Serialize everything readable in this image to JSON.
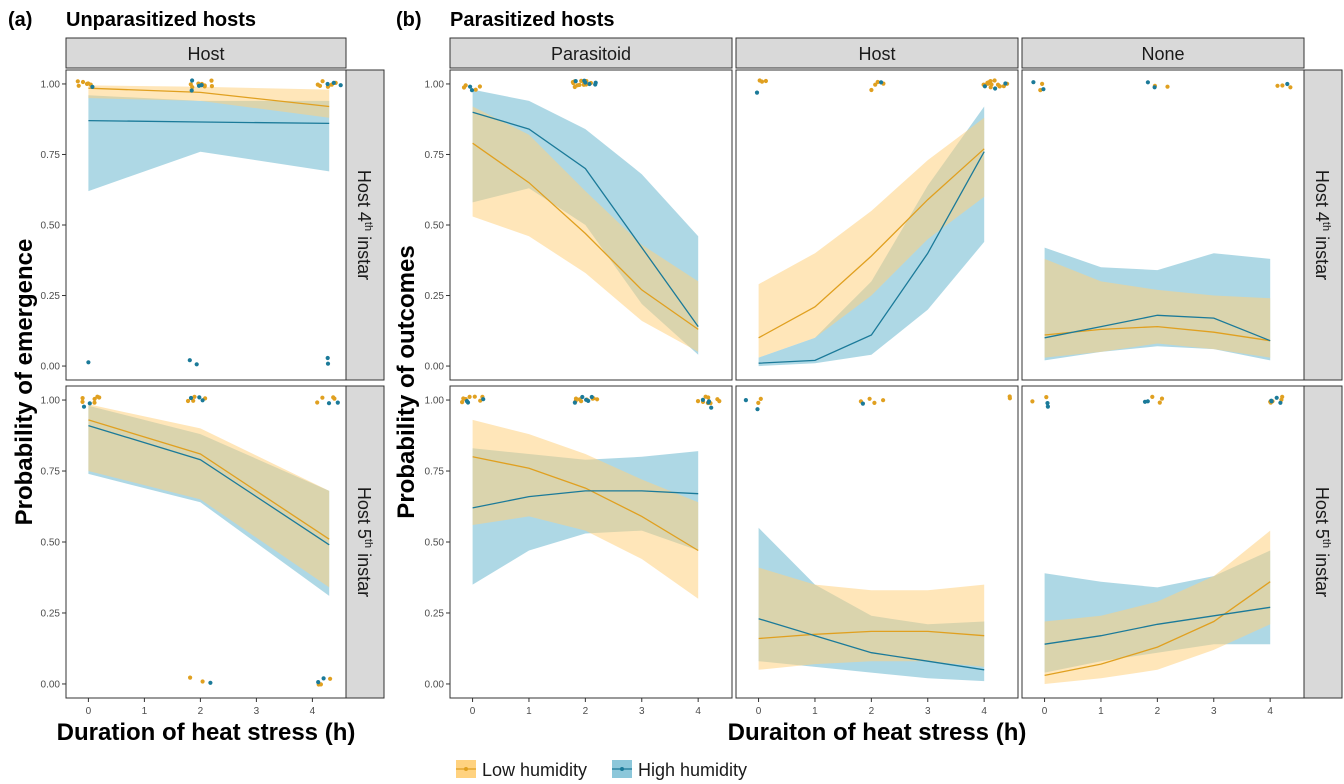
{
  "figure": {
    "panel_a_tag": "(a)",
    "panel_a_title": "Unparasitized hosts",
    "panel_b_tag": "(b)",
    "panel_b_title": "Parasitized hosts",
    "ylabel_a": "Probability of emergence",
    "ylabel_b": "Probability of outcomes",
    "xlabel_a": "Duration of heat stress (h)",
    "xlabel_b": "Duraiton of heat stress (h)",
    "row_strip_1_main": "Host 4",
    "row_strip_1_sup": "th",
    "row_strip_1_tail": " instar",
    "row_strip_2_main": "Host 5",
    "row_strip_2_sup": "th",
    "row_strip_2_tail": " instar",
    "yticks": [
      "0.00",
      "0.25",
      "0.50",
      "0.75",
      "1.00"
    ],
    "xticks": [
      "0",
      "1",
      "2",
      "3",
      "4"
    ]
  },
  "legend": [
    {
      "label": "Low humidity",
      "color": "#F5A623"
    },
    {
      "label": "High humidity",
      "color": "#1B7A99"
    }
  ],
  "colors": {
    "low_line": "#E0A020",
    "low_band": "#FFD27F",
    "high_line": "#1B7A99",
    "high_band": "#6BB8CF",
    "overlap_line": "#3B8A6E"
  },
  "chart_data": [
    {
      "type": "line",
      "panel": "a",
      "column": "Host",
      "row": "Host 4th instar",
      "x": [
        0,
        2,
        4.3
      ],
      "ylim": [
        0,
        1
      ],
      "xlim": [
        -0.4,
        4.6
      ],
      "series": [
        {
          "name": "Low humidity",
          "values": [
            0.985,
            0.97,
            0.92
          ],
          "lower": [
            0.95,
            0.94,
            0.88
          ],
          "upper": [
            0.995,
            0.99,
            0.98
          ]
        },
        {
          "name": "High humidity",
          "values": [
            0.87,
            0.865,
            0.86
          ],
          "lower": [
            0.62,
            0.76,
            0.69
          ],
          "upper": [
            0.96,
            0.94,
            0.94
          ]
        }
      ],
      "points": {
        "x": [
          0,
          2,
          4.3
        ],
        "low_y": [
          [
            1,
            1,
            1,
            1,
            1,
            1
          ],
          [
            1,
            1,
            1,
            1,
            1,
            1,
            1,
            1
          ],
          [
            1,
            1,
            1,
            1,
            1,
            1,
            1
          ]
        ],
        "high_y": [
          [
            1,
            0.02
          ],
          [
            1,
            1,
            1,
            0.97,
            0.01,
            0.01
          ],
          [
            1,
            1,
            1,
            0.02,
            0.01
          ]
        ]
      }
    },
    {
      "type": "line",
      "panel": "a",
      "column": "Host",
      "row": "Host 5th instar",
      "x": [
        0,
        2,
        4.3
      ],
      "ylim": [
        0,
        1
      ],
      "xlim": [
        -0.4,
        4.6
      ],
      "series": [
        {
          "name": "Low humidity",
          "values": [
            0.93,
            0.81,
            0.51
          ],
          "lower": [
            0.75,
            0.65,
            0.34
          ],
          "upper": [
            0.985,
            0.9,
            0.68
          ]
        },
        {
          "name": "High humidity",
          "values": [
            0.91,
            0.79,
            0.49
          ],
          "lower": [
            0.74,
            0.64,
            0.31
          ],
          "upper": [
            0.98,
            0.88,
            0.68
          ]
        }
      ],
      "points": {
        "x": [
          0,
          2,
          4.3
        ],
        "low_y": [
          [
            1,
            1,
            1,
            1,
            1,
            1
          ],
          [
            1,
            1,
            1,
            1,
            0.01,
            0.01
          ],
          [
            1,
            1,
            1,
            1,
            0.01,
            0.01,
            0.01
          ]
        ],
        "high_y": [
          [
            1,
            0.98
          ],
          [
            1,
            1,
            1,
            0.01
          ],
          [
            1,
            1,
            0.02,
            0.01
          ]
        ]
      }
    },
    {
      "type": "line",
      "panel": "b",
      "column": "Parasitoid",
      "row": "Host 4th instar",
      "x": [
        0,
        1,
        2,
        3,
        4
      ],
      "ylim": [
        0,
        1
      ],
      "xlim": [
        -0.4,
        4.6
      ],
      "series": [
        {
          "name": "Low humidity",
          "values": [
            0.79,
            0.65,
            0.47,
            0.27,
            0.13
          ],
          "lower": [
            0.53,
            0.46,
            0.33,
            0.16,
            0.05
          ],
          "upper": [
            0.92,
            0.82,
            0.62,
            0.43,
            0.3
          ]
        },
        {
          "name": "High humidity",
          "values": [
            0.9,
            0.84,
            0.7,
            0.42,
            0.14
          ],
          "lower": [
            0.58,
            0.63,
            0.5,
            0.22,
            0.04
          ],
          "upper": [
            0.98,
            0.94,
            0.84,
            0.68,
            0.46
          ]
        }
      ],
      "points": {
        "x": [
          0,
          2
        ],
        "low_y": [
          [
            1,
            1,
            1,
            0.99
          ],
          [
            1,
            1,
            1,
            1,
            1,
            1,
            1,
            1,
            1,
            1,
            1,
            1
          ]
        ],
        "high_y": [
          [
            1,
            0.98
          ],
          [
            1,
            1,
            1,
            1,
            1,
            1
          ]
        ]
      }
    },
    {
      "type": "line",
      "panel": "b",
      "column": "Host",
      "row": "Host 4th instar",
      "x": [
        0,
        1,
        2,
        3,
        4
      ],
      "ylim": [
        0,
        1
      ],
      "xlim": [
        -0.4,
        4.6
      ],
      "series": [
        {
          "name": "Low humidity",
          "values": [
            0.1,
            0.21,
            0.39,
            0.59,
            0.77
          ],
          "lower": [
            0.03,
            0.1,
            0.25,
            0.45,
            0.6
          ],
          "upper": [
            0.29,
            0.4,
            0.55,
            0.73,
            0.88
          ]
        },
        {
          "name": "High humidity",
          "values": [
            0.01,
            0.02,
            0.11,
            0.4,
            0.76
          ],
          "lower": [
            0.0,
            0.01,
            0.04,
            0.2,
            0.44
          ],
          "upper": [
            0.03,
            0.1,
            0.3,
            0.64,
            0.92
          ]
        }
      ],
      "points": {
        "x": [
          0,
          2,
          4.2
        ],
        "low_y": [
          [
            1,
            1,
            1
          ],
          [
            1,
            1,
            1,
            0.98
          ],
          [
            1,
            1,
            1,
            1,
            1,
            1,
            1,
            1,
            1,
            1,
            1,
            1,
            1,
            1
          ]
        ],
        "high_y": [
          [
            0.98
          ],
          [
            1
          ],
          [
            1,
            1,
            0.99
          ]
        ]
      }
    },
    {
      "type": "line",
      "panel": "b",
      "column": "None",
      "row": "Host 4th instar",
      "x": [
        0,
        1,
        2,
        3,
        4
      ],
      "ylim": [
        0,
        1
      ],
      "xlim": [
        -0.4,
        4.6
      ],
      "series": [
        {
          "name": "Low humidity",
          "values": [
            0.11,
            0.13,
            0.14,
            0.12,
            0.09
          ],
          "lower": [
            0.03,
            0.05,
            0.08,
            0.06,
            0.03
          ],
          "upper": [
            0.38,
            0.3,
            0.27,
            0.25,
            0.24
          ]
        },
        {
          "name": "High humidity",
          "values": [
            0.1,
            0.14,
            0.18,
            0.17,
            0.09
          ],
          "lower": [
            0.02,
            0.05,
            0.07,
            0.06,
            0.02
          ],
          "upper": [
            0.42,
            0.35,
            0.34,
            0.4,
            0.38
          ]
        }
      ],
      "points": {
        "x": [
          0,
          2,
          4.2
        ],
        "low_y": [
          [
            1,
            0.99
          ],
          [
            1,
            1
          ],
          [
            1,
            1,
            1
          ]
        ],
        "high_y": [
          [
            1,
            0.98
          ],
          [
            1,
            1
          ],
          [
            1
          ]
        ]
      }
    },
    {
      "type": "line",
      "panel": "b",
      "column": "Parasitoid",
      "row": "Host 5th instar",
      "x": [
        0,
        1,
        2,
        3,
        4
      ],
      "ylim": [
        0,
        1
      ],
      "xlim": [
        -0.4,
        4.6
      ],
      "series": [
        {
          "name": "Low humidity",
          "values": [
            0.8,
            0.76,
            0.69,
            0.59,
            0.47
          ],
          "lower": [
            0.56,
            0.59,
            0.54,
            0.44,
            0.3
          ],
          "upper": [
            0.93,
            0.88,
            0.81,
            0.72,
            0.64
          ]
        },
        {
          "name": "High humidity",
          "values": [
            0.62,
            0.66,
            0.68,
            0.68,
            0.67
          ],
          "lower": [
            0.35,
            0.47,
            0.53,
            0.54,
            0.47
          ],
          "upper": [
            0.83,
            0.81,
            0.79,
            0.8,
            0.82
          ]
        }
      ],
      "points": {
        "x": [
          0,
          2,
          4.2
        ],
        "low_y": [
          [
            1,
            1,
            1,
            1,
            1,
            1,
            1
          ],
          [
            1,
            1,
            1,
            1,
            1,
            1,
            1,
            1
          ],
          [
            1,
            1,
            1,
            1,
            1,
            1,
            1,
            1
          ]
        ],
        "high_y": [
          [
            1,
            1,
            1
          ],
          [
            1,
            1,
            1,
            1,
            1
          ],
          [
            1,
            1,
            1,
            0.98
          ]
        ]
      }
    },
    {
      "type": "line",
      "panel": "b",
      "column": "Host",
      "row": "Host 5th instar",
      "x": [
        0,
        1,
        2,
        3,
        4
      ],
      "ylim": [
        0,
        1
      ],
      "xlim": [
        -0.4,
        4.6
      ],
      "series": [
        {
          "name": "Low humidity",
          "values": [
            0.16,
            0.175,
            0.185,
            0.185,
            0.17
          ],
          "lower": [
            0.05,
            0.07,
            0.08,
            0.08,
            0.06
          ],
          "upper": [
            0.41,
            0.35,
            0.33,
            0.33,
            0.35
          ]
        },
        {
          "name": "High humidity",
          "values": [
            0.23,
            0.17,
            0.11,
            0.08,
            0.05
          ],
          "lower": [
            0.08,
            0.06,
            0.04,
            0.02,
            0.01
          ],
          "upper": [
            0.55,
            0.35,
            0.24,
            0.21,
            0.22
          ]
        }
      ],
      "points": {
        "x": [
          0,
          2,
          4.3
        ],
        "low_y": [
          [
            1,
            1
          ],
          [
            1,
            1,
            1,
            0.99
          ],
          [
            1,
            1
          ]
        ],
        "high_y": [
          [
            1,
            0.98
          ],
          [
            1
          ],
          []
        ]
      }
    },
    {
      "type": "line",
      "panel": "b",
      "column": "None",
      "row": "Host 5th instar",
      "x": [
        0,
        1,
        2,
        3,
        4
      ],
      "ylim": [
        0,
        1
      ],
      "xlim": [
        -0.4,
        4.6
      ],
      "series": [
        {
          "name": "Low humidity",
          "values": [
            0.03,
            0.07,
            0.13,
            0.22,
            0.36
          ],
          "lower": [
            0.0,
            0.02,
            0.05,
            0.12,
            0.21
          ],
          "upper": [
            0.22,
            0.24,
            0.29,
            0.38,
            0.54
          ]
        },
        {
          "name": "High humidity",
          "values": [
            0.14,
            0.17,
            0.21,
            0.24,
            0.27
          ],
          "lower": [
            0.04,
            0.08,
            0.11,
            0.14,
            0.14
          ],
          "upper": [
            0.39,
            0.36,
            0.34,
            0.38,
            0.47
          ]
        }
      ],
      "points": {
        "x": [
          0,
          2,
          4.2
        ],
        "low_y": [
          [
            1,
            1
          ],
          [
            1,
            1,
            1
          ],
          [
            1,
            1,
            1,
            1,
            1,
            1
          ]
        ],
        "high_y": [
          [
            1,
            0.98
          ],
          [
            1,
            1
          ],
          [
            1,
            1,
            1,
            0.99
          ]
        ]
      }
    }
  ]
}
